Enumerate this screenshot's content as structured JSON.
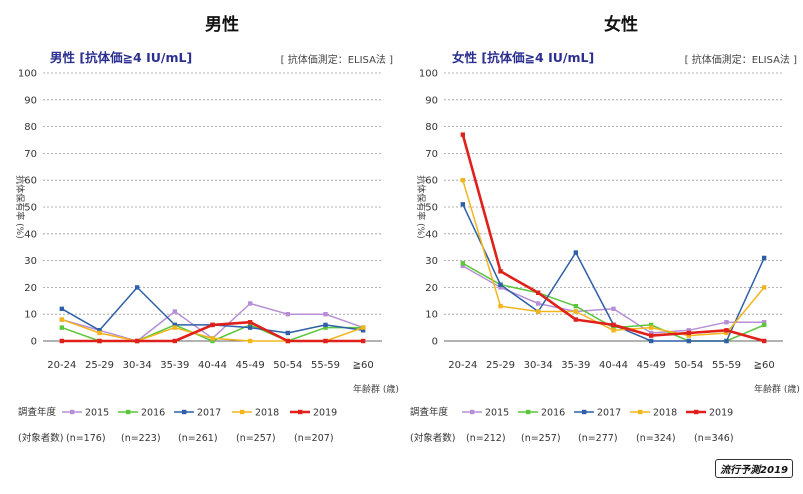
{
  "headings": {
    "left": "男性",
    "right": "女性"
  },
  "badge": "流行予測2019",
  "chart_data": [
    {
      "type": "line",
      "title": "男性 [抗体価≧4 IU/mL]",
      "method": "[ 抗体価測定：ELISA法 ]",
      "ylabel": "抗体保有率 (%)",
      "xlabel": "年齢群 (歳)",
      "ylim": [
        0,
        100
      ],
      "yticks": [
        0,
        10,
        20,
        30,
        40,
        50,
        60,
        70,
        80,
        90,
        100
      ],
      "categories": [
        "20-24",
        "25-29",
        "30-34",
        "35-39",
        "40-44",
        "45-49",
        "50-54",
        "55-59",
        "≧60"
      ],
      "legend_title": "調査年度",
      "legend_subtitle": "(対象者数)",
      "series": [
        {
          "name": "2015",
          "n": "(n=176)",
          "color": "#b78fd6",
          "values": [
            8,
            4,
            0,
            11,
            1,
            14,
            10,
            10,
            5
          ]
        },
        {
          "name": "2016",
          "n": "(n=223)",
          "color": "#5cc63b",
          "values": [
            5,
            0,
            0,
            6,
            0,
            6,
            0,
            5,
            5
          ]
        },
        {
          "name": "2017",
          "n": "(n=261)",
          "color": "#2e5fa8",
          "values": [
            12,
            4,
            20,
            6,
            6,
            5,
            3,
            6,
            4
          ]
        },
        {
          "name": "2018",
          "n": "(n=257)",
          "color": "#f2b51c",
          "values": [
            8,
            3,
            0,
            5,
            1,
            0,
            0,
            0,
            5
          ]
        },
        {
          "name": "2019",
          "n": "(n=207)",
          "color": "#e0201b",
          "values": [
            0,
            0,
            0,
            0,
            6,
            7,
            0,
            0,
            0
          ]
        }
      ]
    },
    {
      "type": "line",
      "title": "女性 [抗体価≧4 IU/mL]",
      "method": "[ 抗体価測定：ELISA法 ]",
      "ylabel": "抗体保有率 (%)",
      "xlabel": "年齢群 (歳)",
      "ylim": [
        0,
        100
      ],
      "yticks": [
        0,
        10,
        20,
        30,
        40,
        50,
        60,
        70,
        80,
        90,
        100
      ],
      "categories": [
        "20-24",
        "25-29",
        "30-34",
        "35-39",
        "40-44",
        "45-49",
        "50-54",
        "55-59",
        "≧60"
      ],
      "legend_title": "調査年度",
      "legend_subtitle": "(対象者数)",
      "series": [
        {
          "name": "2015",
          "n": "(n=212)",
          "color": "#b78fd6",
          "values": [
            28,
            20,
            14,
            11,
            12,
            3,
            4,
            7,
            7
          ]
        },
        {
          "name": "2016",
          "n": "(n=257)",
          "color": "#5cc63b",
          "values": [
            29,
            21,
            18,
            13,
            5,
            6,
            0,
            0,
            6
          ]
        },
        {
          "name": "2017",
          "n": "(n=277)",
          "color": "#2e5fa8",
          "values": [
            51,
            21,
            11,
            33,
            6,
            0,
            0,
            0,
            31
          ]
        },
        {
          "name": "2018",
          "n": "(n=324)",
          "color": "#f2b51c",
          "values": [
            60,
            13,
            11,
            11,
            4,
            5,
            2,
            3,
            20
          ]
        },
        {
          "name": "2019",
          "n": "(n=346)",
          "color": "#e0201b",
          "values": [
            77,
            26,
            18,
            8,
            6,
            2,
            3,
            4,
            0
          ]
        }
      ]
    }
  ]
}
